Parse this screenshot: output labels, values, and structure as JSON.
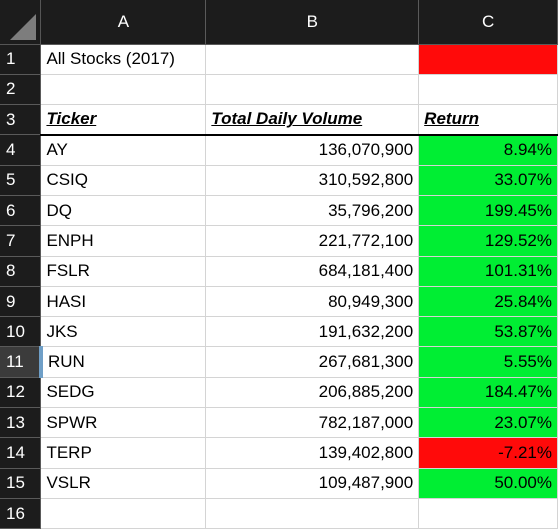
{
  "columns": [
    "A",
    "B",
    "C"
  ],
  "title_cell": "All Stocks (2017)",
  "headers": {
    "ticker": "Ticker",
    "volume": "Total Daily Volume",
    "return": "Return"
  },
  "row_numbers": [
    "1",
    "2",
    "3",
    "4",
    "5",
    "6",
    "7",
    "8",
    "9",
    "10",
    "11",
    "12",
    "13",
    "14",
    "15",
    "16"
  ],
  "colors": {
    "positive": "#00ee33",
    "negative": "#ff0a0a"
  },
  "rows": [
    {
      "ticker": "AY",
      "volume": "136,070,900",
      "return": "8.94%",
      "status": "positive"
    },
    {
      "ticker": "CSIQ",
      "volume": "310,592,800",
      "return": "33.07%",
      "status": "positive"
    },
    {
      "ticker": "DQ",
      "volume": "35,796,200",
      "return": "199.45%",
      "status": "positive"
    },
    {
      "ticker": "ENPH",
      "volume": "221,772,100",
      "return": "129.52%",
      "status": "positive"
    },
    {
      "ticker": "FSLR",
      "volume": "684,181,400",
      "return": "101.31%",
      "status": "positive"
    },
    {
      "ticker": "HASI",
      "volume": "80,949,300",
      "return": "25.84%",
      "status": "positive"
    },
    {
      "ticker": "JKS",
      "volume": "191,632,200",
      "return": "53.87%",
      "status": "positive"
    },
    {
      "ticker": "RUN",
      "volume": "267,681,300",
      "return": "5.55%",
      "status": "positive"
    },
    {
      "ticker": "SEDG",
      "volume": "206,885,200",
      "return": "184.47%",
      "status": "positive"
    },
    {
      "ticker": "SPWR",
      "volume": "782,187,000",
      "return": "23.07%",
      "status": "positive"
    },
    {
      "ticker": "TERP",
      "volume": "139,402,800",
      "return": "-7.21%",
      "status": "negative"
    },
    {
      "ticker": "VSLR",
      "volume": "109,487,900",
      "return": "50.00%",
      "status": "positive"
    }
  ]
}
